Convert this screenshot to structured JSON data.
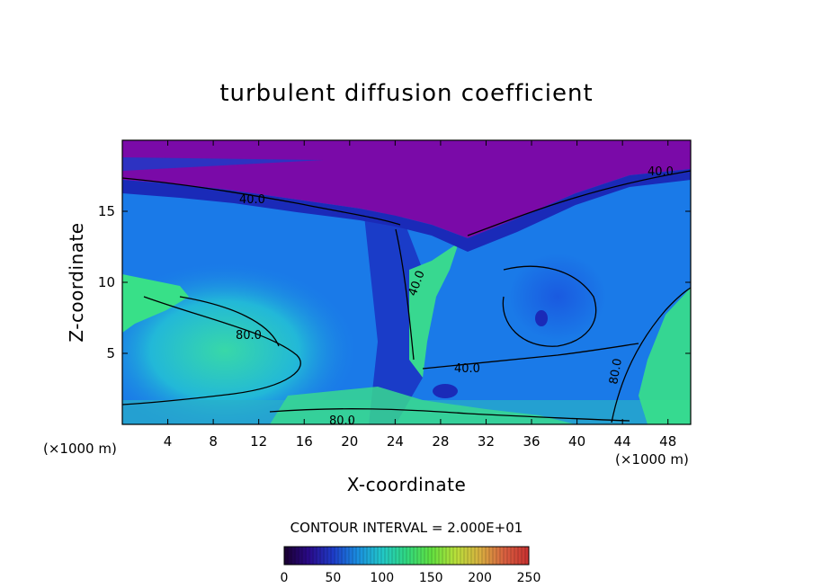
{
  "chart_data": {
    "type": "heatmap",
    "title": "turbulent diffusion coefficient",
    "xlabel": "X-coordinate",
    "ylabel": "Z-coordinate",
    "x_unit": "(×1000 m)",
    "x_unit_right": "(×1000 m)",
    "xlim": [
      0,
      50
    ],
    "ylim": [
      0,
      20
    ],
    "xticks": [
      "4",
      "8",
      "12",
      "16",
      "20",
      "24",
      "28",
      "32",
      "36",
      "40",
      "44",
      "48"
    ],
    "yticks": [
      "5",
      "10",
      "15"
    ],
    "contour_interval_text": "CONTOUR INTERVAL = 2.000E+01",
    "contour_labels": [
      "40.0",
      "40.0",
      "80.0",
      "40.0",
      "40.0",
      "80.0",
      "80.0"
    ],
    "colorbar": {
      "range": [
        0,
        250
      ],
      "ticks": [
        "0",
        "50",
        "100",
        "150",
        "200",
        "250"
      ],
      "colors": [
        "#1a0030",
        "#2a0a8a",
        "#1e3cc8",
        "#1a8ee0",
        "#22c8c8",
        "#30d880",
        "#60e040",
        "#b8e03a",
        "#d8b040",
        "#d86040",
        "#c83030"
      ]
    },
    "field_colors": {
      "upper_region": "#7a0aa8",
      "interior": "#1a7ae8",
      "near_surface_core": "#2ec8c8",
      "high_values": "#38e088"
    }
  }
}
